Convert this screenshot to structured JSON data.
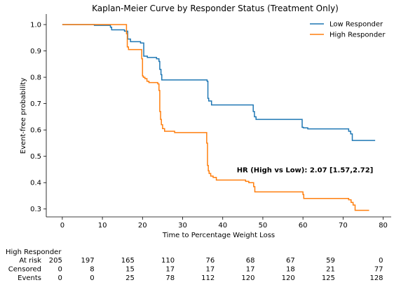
{
  "chart_data": {
    "type": "line",
    "title": "Kaplan-Meier Curve by Responder Status (Treatment Only)",
    "xlabel": "Time to Percentage Weight Loss",
    "ylabel": "Event-free probability",
    "xlim": [
      -4,
      82
    ],
    "ylim": [
      0.27,
      1.04
    ],
    "xticks": [
      0,
      10,
      20,
      30,
      40,
      50,
      60,
      70,
      80
    ],
    "yticks": [
      0.3,
      0.4,
      0.5,
      0.6,
      0.7,
      0.8,
      0.9,
      1.0
    ],
    "grid": false,
    "legend_position": "top-right",
    "series": [
      {
        "name": "Low Responder",
        "color": "#1f77b4",
        "x": [
          0,
          8,
          12,
          12.3,
          15.5,
          16.3,
          17,
          19.5,
          20.3,
          21.2,
          23.5,
          24.1,
          24.3,
          24.6,
          24.8,
          36.1,
          36.3,
          36.5,
          37.2,
          47.6,
          47.9,
          48.3,
          59.8,
          60.1,
          61.2,
          71.4,
          71.9,
          72.3,
          78
        ],
        "y": [
          1.0,
          0.997,
          0.99,
          0.98,
          0.975,
          0.945,
          0.935,
          0.93,
          0.88,
          0.875,
          0.87,
          0.86,
          0.83,
          0.81,
          0.79,
          0.785,
          0.72,
          0.71,
          0.695,
          0.67,
          0.65,
          0.64,
          0.61,
          0.608,
          0.604,
          0.595,
          0.585,
          0.56,
          0.56
        ]
      },
      {
        "name": "High Responder",
        "color": "#ff7f0e",
        "x": [
          0,
          16,
          16.2,
          16.5,
          19.8,
          20,
          20.2,
          20.6,
          21.1,
          21.6,
          23.8,
          24.1,
          24.3,
          24.5,
          24.7,
          25,
          25.5,
          28,
          36,
          36.2,
          36.4,
          36.6,
          37,
          37.6,
          38.4,
          45.7,
          46.5,
          47.7,
          48,
          60,
          60.2,
          71.4,
          72,
          72.5,
          73,
          76.5
        ],
        "y": [
          1.0,
          0.965,
          0.915,
          0.905,
          0.87,
          0.805,
          0.8,
          0.795,
          0.785,
          0.78,
          0.775,
          0.75,
          0.67,
          0.64,
          0.62,
          0.605,
          0.595,
          0.59,
          0.55,
          0.465,
          0.445,
          0.435,
          0.425,
          0.42,
          0.41,
          0.405,
          0.4,
          0.385,
          0.365,
          0.355,
          0.34,
          0.335,
          0.325,
          0.315,
          0.295,
          0.295
        ]
      }
    ],
    "annotation": {
      "text": "HR (High vs Low): 2.07 [1.57,2.72]",
      "x": 60.5,
      "y": 0.45
    },
    "risk_table": {
      "group": "High Responder",
      "timepoints": [
        0,
        8,
        18,
        28,
        38,
        48,
        58,
        68,
        80
      ],
      "rows": [
        {
          "label": "At risk",
          "values": [
            "205",
            "197",
            "165",
            "110",
            "76",
            "68",
            "67",
            "59",
            "0"
          ]
        },
        {
          "label": "Censored",
          "values": [
            "0",
            "8",
            "15",
            "17",
            "17",
            "17",
            "18",
            "21",
            "77"
          ]
        },
        {
          "label": "Events",
          "values": [
            "0",
            "0",
            "25",
            "78",
            "112",
            "120",
            "120",
            "125",
            "128"
          ]
        }
      ]
    }
  }
}
